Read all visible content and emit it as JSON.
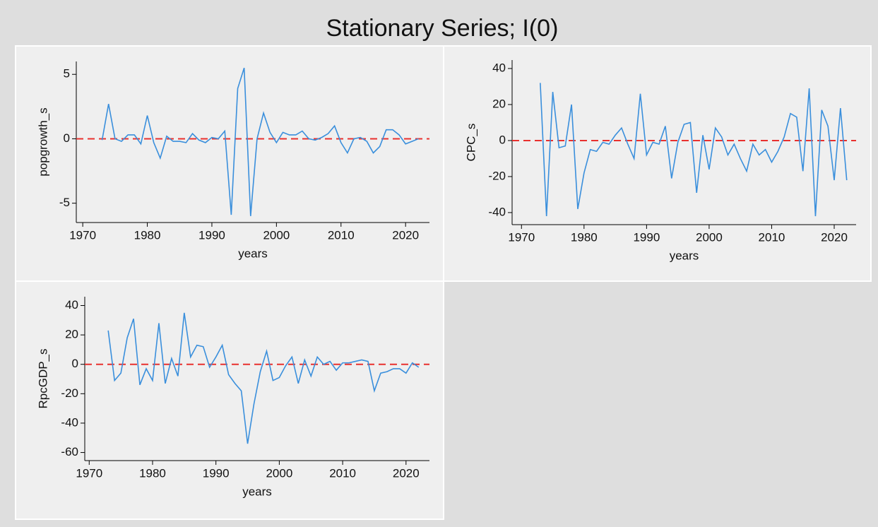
{
  "title": "Stationary Series; I(0)",
  "chart_data": [
    {
      "type": "line",
      "x_label": "years",
      "y_label": "popgrowth_s",
      "x": [
        1973,
        1974,
        1975,
        1976,
        1977,
        1978,
        1979,
        1980,
        1981,
        1982,
        1983,
        1984,
        1985,
        1986,
        1987,
        1988,
        1989,
        1990,
        1991,
        1992,
        1993,
        1994,
        1995,
        1996,
        1997,
        1998,
        1999,
        2000,
        2001,
        2002,
        2003,
        2004,
        2005,
        2006,
        2007,
        2008,
        2009,
        2010,
        2011,
        2012,
        2013,
        2014,
        2015,
        2016,
        2017,
        2018,
        2019,
        2020,
        2021,
        2022
      ],
      "series": [
        {
          "color": "#3a8fdc",
          "values": [
            -0.1,
            2.7,
            0.0,
            -0.2,
            0.3,
            0.3,
            -0.4,
            1.8,
            -0.3,
            -1.5,
            0.2,
            -0.2,
            -0.2,
            -0.3,
            0.4,
            -0.1,
            -0.3,
            0.1,
            0.0,
            0.6,
            -5.9,
            3.9,
            5.5,
            -6.0,
            0.0,
            2.0,
            0.5,
            -0.3,
            0.5,
            0.3,
            0.3,
            0.6,
            0.0,
            -0.1,
            0.1,
            0.4,
            1.0,
            -0.3,
            -1.1,
            0.0,
            0.1,
            -0.2,
            -1.1,
            -0.6,
            0.7,
            0.7,
            0.3,
            -0.4,
            -0.2,
            0.0
          ]
        }
      ],
      "reference_line": 0,
      "reference_color": "#e8302e",
      "xlim": [
        1969,
        2023.7
      ],
      "xticks": [
        1970,
        1980,
        1990,
        2000,
        2010,
        2020
      ],
      "ylim": [
        -6.5,
        6.0
      ],
      "yticks": [
        -5,
        0,
        5
      ]
    },
    {
      "type": "line",
      "x_label": "years",
      "y_label": "CPC_s",
      "x": [
        1973,
        1974,
        1975,
        1976,
        1977,
        1978,
        1979,
        1980,
        1981,
        1982,
        1983,
        1984,
        1985,
        1986,
        1987,
        1988,
        1989,
        1990,
        1991,
        1992,
        1993,
        1994,
        1995,
        1996,
        1997,
        1998,
        1999,
        2000,
        2001,
        2002,
        2003,
        2004,
        2005,
        2006,
        2007,
        2008,
        2009,
        2010,
        2011,
        2012,
        2013,
        2014,
        2015,
        2016,
        2017,
        2018,
        2019,
        2020,
        2021,
        2022
      ],
      "series": [
        {
          "color": "#3a8fdc",
          "values": [
            32,
            -42,
            27,
            -4,
            -3,
            20,
            -38,
            -18,
            -5,
            -6,
            -1,
            -2,
            3,
            7,
            -2,
            -10,
            26,
            -8,
            -1,
            -2,
            8,
            -21,
            -1,
            9,
            10,
            -29,
            3,
            -16,
            7,
            2,
            -8,
            -2,
            -10,
            -17,
            -2,
            -8,
            -5,
            -12,
            -6,
            2,
            15,
            13,
            -17,
            29,
            -42,
            17,
            8,
            -22,
            18,
            -22
          ]
        }
      ],
      "reference_line": 0,
      "reference_color": "#e8302e",
      "xlim": [
        1968.5,
        2023.5
      ],
      "xticks": [
        1970,
        1980,
        1990,
        2000,
        2010,
        2020
      ],
      "ylim": [
        -46.7,
        44.7
      ],
      "yticks": [
        -40,
        -20,
        0,
        20,
        40
      ]
    },
    {
      "type": "line",
      "x_label": "years",
      "y_label": "RpcGDP_s",
      "x": [
        1973,
        1974,
        1975,
        1976,
        1977,
        1978,
        1979,
        1980,
        1981,
        1982,
        1983,
        1984,
        1985,
        1986,
        1987,
        1988,
        1989,
        1990,
        1991,
        1992,
        1993,
        1994,
        1995,
        1996,
        1997,
        1998,
        1999,
        2000,
        2001,
        2002,
        2003,
        2004,
        2005,
        2006,
        2007,
        2008,
        2009,
        2010,
        2011,
        2012,
        2013,
        2014,
        2015,
        2016,
        2017,
        2018,
        2019,
        2020,
        2021,
        2022
      ],
      "series": [
        {
          "color": "#3a8fdc",
          "values": [
            23,
            -11,
            -6,
            18,
            31,
            -14,
            -3,
            -11,
            28,
            -13,
            4,
            -8,
            35,
            5,
            13,
            12,
            -2,
            5,
            13,
            -7,
            -13,
            -18,
            -54,
            -27,
            -5,
            9,
            -11,
            -9,
            -1,
            5,
            -13,
            3,
            -8,
            5,
            0,
            2,
            -4,
            1,
            1,
            2,
            3,
            2,
            -18,
            -6,
            -5,
            -3,
            -3,
            -6,
            1,
            -2
          ]
        }
      ],
      "reference_line": 0,
      "reference_color": "#e8302e",
      "xlim": [
        1969.3,
        2023.7
      ],
      "xticks": [
        1970,
        1980,
        1990,
        2000,
        2010,
        2020
      ],
      "ylim": [
        -65.5,
        46
      ],
      "yticks": [
        -60,
        -40,
        -20,
        0,
        20,
        40
      ]
    }
  ]
}
